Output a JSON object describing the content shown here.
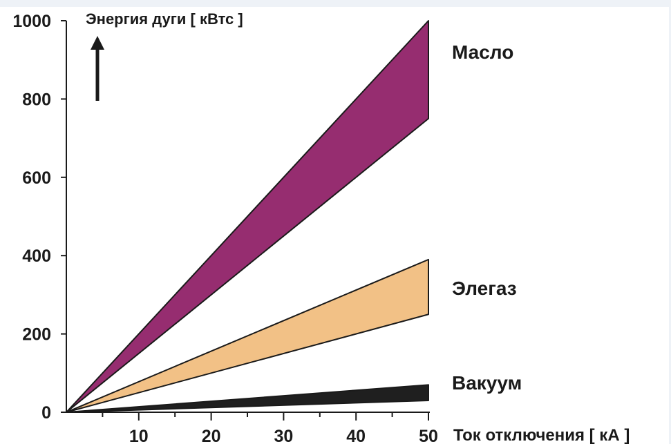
{
  "chart_data": {
    "type": "area",
    "ylabel": "Энергия дуги [ кВтс ]",
    "xlabel": "Ток отключения [ кА ]",
    "xlim": [
      0,
      50
    ],
    "ylim": [
      0,
      1000
    ],
    "x_ticks": [
      10,
      20,
      30,
      40,
      50
    ],
    "y_ticks": [
      0,
      200,
      400,
      600,
      800,
      1000
    ],
    "grid": false,
    "legend": "labels-right",
    "series": [
      {
        "name": "Масло",
        "color": "#962d70",
        "x": [
          0,
          50
        ],
        "lower": [
          0,
          750
        ],
        "upper": [
          0,
          1000
        ]
      },
      {
        "name": "Элегаз",
        "color": "#f2c186",
        "x": [
          0,
          50
        ],
        "lower": [
          0,
          250
        ],
        "upper": [
          0,
          390
        ]
      },
      {
        "name": "Вакуум",
        "color": "#1f1f1f",
        "x": [
          0,
          50
        ],
        "lower": [
          0,
          30
        ],
        "upper": [
          0,
          70
        ]
      }
    ]
  }
}
